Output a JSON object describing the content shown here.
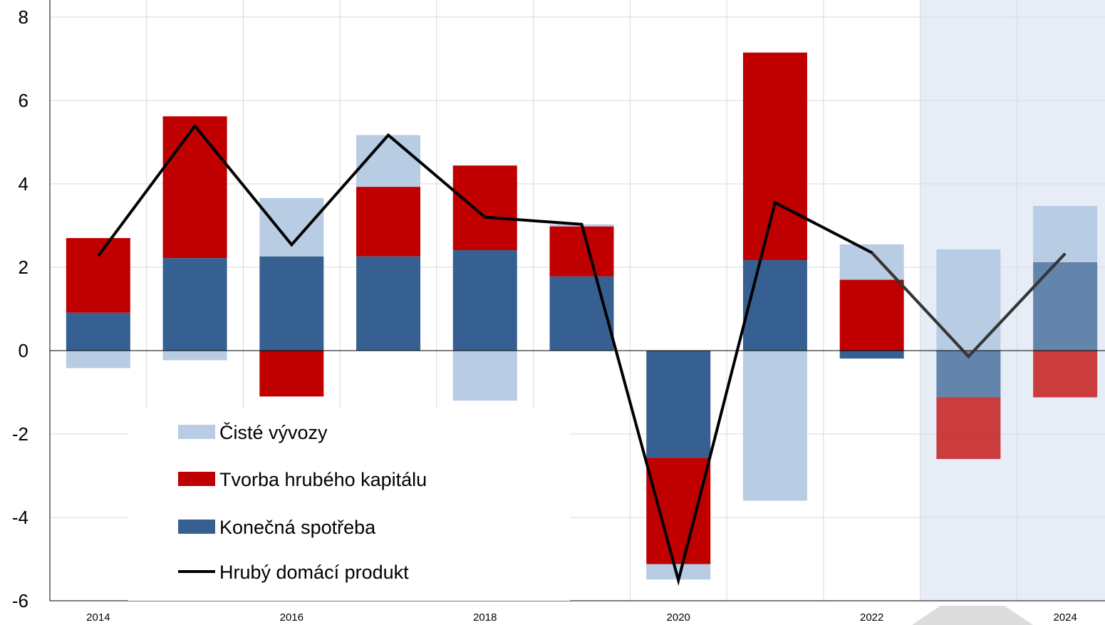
{
  "chart_data": {
    "type": "bar",
    "stacked": true,
    "categories": [
      "2014",
      "2015",
      "2016",
      "2017",
      "2018",
      "2019",
      "2020",
      "2021",
      "2022",
      "2023",
      "2024"
    ],
    "x_tick_labels": [
      "2014",
      "",
      "2016",
      "",
      "2018",
      "",
      "2020",
      "",
      "2022",
      "",
      "2024"
    ],
    "series": [
      {
        "name": "Čisté vývozy",
        "kind": "bar",
        "color": "#b8cce4",
        "values": [
          -0.42,
          -0.23,
          1.4,
          1.24,
          -1.2,
          0.05,
          -0.37,
          -3.6,
          0.85,
          2.43,
          1.35
        ]
      },
      {
        "name": "Tvorba hrubého kapitálu",
        "kind": "bar",
        "color": "#c00000",
        "values": [
          1.79,
          3.4,
          -1.1,
          1.67,
          2.03,
          1.2,
          -2.55,
          4.98,
          1.7,
          -1.48,
          -1.12
        ]
      },
      {
        "name": "Konečná spotřeba",
        "kind": "bar",
        "color": "#376092",
        "values": [
          0.91,
          2.22,
          2.26,
          2.26,
          2.41,
          1.78,
          -2.57,
          2.17,
          -0.19,
          -1.12,
          2.12
        ]
      },
      {
        "name": "Hrubý domácí produkt",
        "kind": "line",
        "color": "#000000",
        "values": [
          2.27,
          5.39,
          2.54,
          5.17,
          3.2,
          3.03,
          -5.51,
          3.55,
          2.35,
          -0.14,
          2.33
        ]
      }
    ],
    "ylim": [
      -6,
      8
    ],
    "yticks": [
      "8",
      "6",
      "4",
      "2",
      "0",
      "-2",
      "-4",
      "-6"
    ],
    "ytick_values": [
      8,
      6,
      4,
      2,
      0,
      -2,
      -4,
      -6
    ],
    "forecast_categories": [
      "2023",
      "2024"
    ],
    "forecast_shade_color": "#e7edf6",
    "grid": true,
    "legend_position": "bottom-left",
    "title": "",
    "xlabel": "",
    "ylabel": ""
  }
}
